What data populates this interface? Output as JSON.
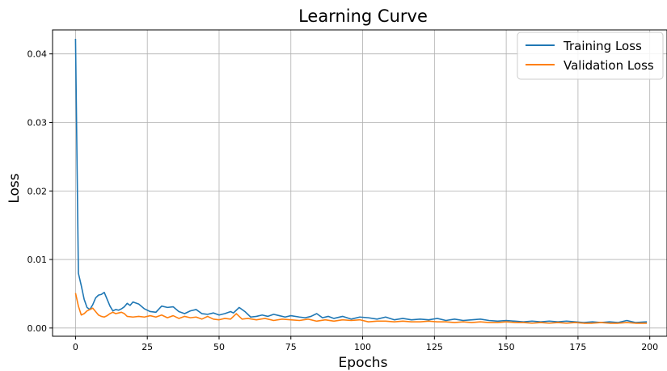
{
  "chart_data": {
    "type": "line",
    "title": "Learning Curve",
    "xlabel": "Epochs",
    "ylabel": "Loss",
    "xlim": [
      -8,
      206
    ],
    "ylim": [
      -0.0012,
      0.0435
    ],
    "xticks": [
      0,
      25,
      50,
      75,
      100,
      125,
      150,
      175,
      200
    ],
    "yticks": [
      0.0,
      0.01,
      0.02,
      0.03,
      0.04
    ],
    "ytick_labels": [
      "0.00",
      "0.01",
      "0.02",
      "0.03",
      "0.04"
    ],
    "grid": true,
    "legend_position": "top-right",
    "series": [
      {
        "name": "Training Loss",
        "color": "#1f77b4",
        "keypoints": [
          [
            0,
            0.0422
          ],
          [
            1,
            0.008
          ],
          [
            2,
            0.0062
          ],
          [
            3,
            0.0042
          ],
          [
            4,
            0.003
          ],
          [
            5,
            0.0027
          ],
          [
            6,
            0.0034
          ],
          [
            7,
            0.0044
          ],
          [
            8,
            0.0048
          ],
          [
            9,
            0.0049
          ],
          [
            10,
            0.0052
          ],
          [
            11,
            0.0042
          ],
          [
            12,
            0.0032
          ],
          [
            13,
            0.0025
          ],
          [
            14,
            0.0027
          ],
          [
            15,
            0.0026
          ],
          [
            16,
            0.0028
          ],
          [
            17,
            0.0031
          ],
          [
            18,
            0.0036
          ],
          [
            19,
            0.0033
          ],
          [
            20,
            0.0038
          ],
          [
            22,
            0.0035
          ],
          [
            24,
            0.0028
          ],
          [
            26,
            0.0024
          ],
          [
            28,
            0.0023
          ],
          [
            30,
            0.0032
          ],
          [
            32,
            0.003
          ],
          [
            34,
            0.0031
          ],
          [
            36,
            0.0024
          ],
          [
            38,
            0.0021
          ],
          [
            40,
            0.0025
          ],
          [
            42,
            0.0027
          ],
          [
            44,
            0.0021
          ],
          [
            46,
            0.002
          ],
          [
            48,
            0.0022
          ],
          [
            50,
            0.0019
          ],
          [
            52,
            0.0021
          ],
          [
            54,
            0.0024
          ],
          [
            55,
            0.0022
          ],
          [
            57,
            0.003
          ],
          [
            59,
            0.0024
          ],
          [
            61,
            0.0016
          ],
          [
            63,
            0.0017
          ],
          [
            65,
            0.0019
          ],
          [
            67,
            0.0017
          ],
          [
            69,
            0.002
          ],
          [
            71,
            0.0018
          ],
          [
            73,
            0.0016
          ],
          [
            75,
            0.0018
          ],
          [
            78,
            0.0016
          ],
          [
            80,
            0.0015
          ],
          [
            82,
            0.0017
          ],
          [
            84,
            0.0021
          ],
          [
            86,
            0.0015
          ],
          [
            88,
            0.0017
          ],
          [
            90,
            0.0014
          ],
          [
            93,
            0.0017
          ],
          [
            96,
            0.0013
          ],
          [
            99,
            0.0016
          ],
          [
            102,
            0.0015
          ],
          [
            105,
            0.0013
          ],
          [
            108,
            0.0016
          ],
          [
            111,
            0.0012
          ],
          [
            114,
            0.0014
          ],
          [
            117,
            0.0012
          ],
          [
            120,
            0.0013
          ],
          [
            123,
            0.0012
          ],
          [
            126,
            0.0014
          ],
          [
            129,
            0.0011
          ],
          [
            132,
            0.0013
          ],
          [
            135,
            0.0011
          ],
          [
            138,
            0.0012
          ],
          [
            141,
            0.0013
          ],
          [
            144,
            0.0011
          ],
          [
            147,
            0.001
          ],
          [
            150,
            0.0011
          ],
          [
            153,
            0.001
          ],
          [
            156,
            0.0009
          ],
          [
            159,
            0.001
          ],
          [
            162,
            0.0009
          ],
          [
            165,
            0.001
          ],
          [
            168,
            0.0009
          ],
          [
            171,
            0.001
          ],
          [
            174,
            0.0009
          ],
          [
            177,
            0.0008
          ],
          [
            180,
            0.0009
          ],
          [
            183,
            0.0008
          ],
          [
            186,
            0.0009
          ],
          [
            189,
            0.0008
          ],
          [
            192,
            0.0011
          ],
          [
            195,
            0.0008
          ],
          [
            199,
            0.0009
          ]
        ]
      },
      {
        "name": "Validation Loss",
        "color": "#ff7f0e",
        "keypoints": [
          [
            0,
            0.0051
          ],
          [
            1,
            0.0032
          ],
          [
            2,
            0.0019
          ],
          [
            3,
            0.0021
          ],
          [
            4,
            0.0025
          ],
          [
            5,
            0.0027
          ],
          [
            6,
            0.0029
          ],
          [
            7,
            0.0024
          ],
          [
            8,
            0.0019
          ],
          [
            9,
            0.0017
          ],
          [
            10,
            0.0016
          ],
          [
            11,
            0.0018
          ],
          [
            12,
            0.0021
          ],
          [
            13,
            0.0023
          ],
          [
            14,
            0.0021
          ],
          [
            15,
            0.0022
          ],
          [
            16,
            0.0023
          ],
          [
            17,
            0.0021
          ],
          [
            18,
            0.0017
          ],
          [
            20,
            0.0016
          ],
          [
            22,
            0.0017
          ],
          [
            24,
            0.0016
          ],
          [
            26,
            0.0018
          ],
          [
            28,
            0.0016
          ],
          [
            30,
            0.0019
          ],
          [
            32,
            0.0015
          ],
          [
            34,
            0.0018
          ],
          [
            36,
            0.0014
          ],
          [
            38,
            0.0017
          ],
          [
            40,
            0.0015
          ],
          [
            42,
            0.0016
          ],
          [
            44,
            0.0013
          ],
          [
            46,
            0.0017
          ],
          [
            48,
            0.0013
          ],
          [
            50,
            0.0012
          ],
          [
            52,
            0.0014
          ],
          [
            54,
            0.0013
          ],
          [
            56,
            0.0021
          ],
          [
            58,
            0.0013
          ],
          [
            60,
            0.0014
          ],
          [
            63,
            0.0012
          ],
          [
            66,
            0.0014
          ],
          [
            69,
            0.0011
          ],
          [
            72,
            0.0013
          ],
          [
            75,
            0.0012
          ],
          [
            78,
            0.0011
          ],
          [
            81,
            0.0013
          ],
          [
            84,
            0.001
          ],
          [
            87,
            0.0012
          ],
          [
            90,
            0.001
          ],
          [
            93,
            0.0012
          ],
          [
            96,
            0.0011
          ],
          [
            99,
            0.0012
          ],
          [
            102,
            0.0009
          ],
          [
            105,
            0.001
          ],
          [
            108,
            0.001
          ],
          [
            111,
            0.0009
          ],
          [
            114,
            0.001
          ],
          [
            117,
            0.0009
          ],
          [
            120,
            0.0009
          ],
          [
            123,
            0.001
          ],
          [
            126,
            0.0009
          ],
          [
            129,
            0.0009
          ],
          [
            132,
            0.0008
          ],
          [
            135,
            0.0009
          ],
          [
            138,
            0.0008
          ],
          [
            141,
            0.0009
          ],
          [
            144,
            0.0008
          ],
          [
            147,
            0.0008
          ],
          [
            150,
            0.0009
          ],
          [
            153,
            0.0008
          ],
          [
            156,
            0.0008
          ],
          [
            159,
            0.0007
          ],
          [
            162,
            0.0008
          ],
          [
            165,
            0.0007
          ],
          [
            168,
            0.0008
          ],
          [
            171,
            0.0007
          ],
          [
            174,
            0.0008
          ],
          [
            177,
            0.0007
          ],
          [
            180,
            0.0007
          ],
          [
            183,
            0.0008
          ],
          [
            186,
            0.0007
          ],
          [
            189,
            0.0007
          ],
          [
            192,
            0.0008
          ],
          [
            195,
            0.0007
          ],
          [
            199,
            0.0007
          ]
        ]
      }
    ]
  }
}
